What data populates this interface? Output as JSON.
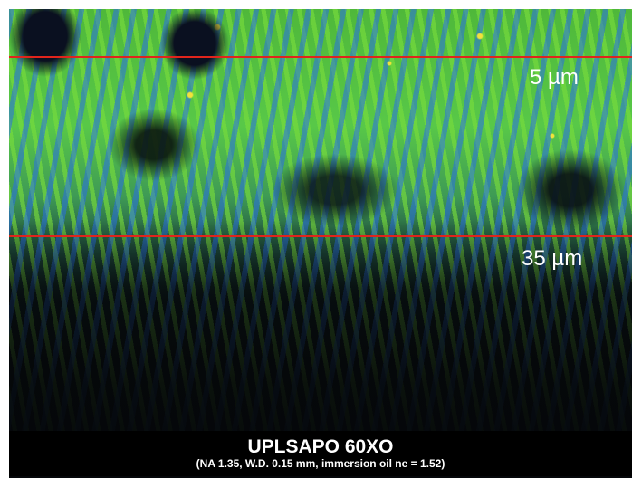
{
  "labels": {
    "upper_depth": "5 µm",
    "lower_depth": "35 µm"
  },
  "caption": {
    "title": "UPLSAPO 60XO",
    "subtitle": "(NA 1.35, W.D. 0.15 mm, immersion oil ne = 1.52)"
  }
}
